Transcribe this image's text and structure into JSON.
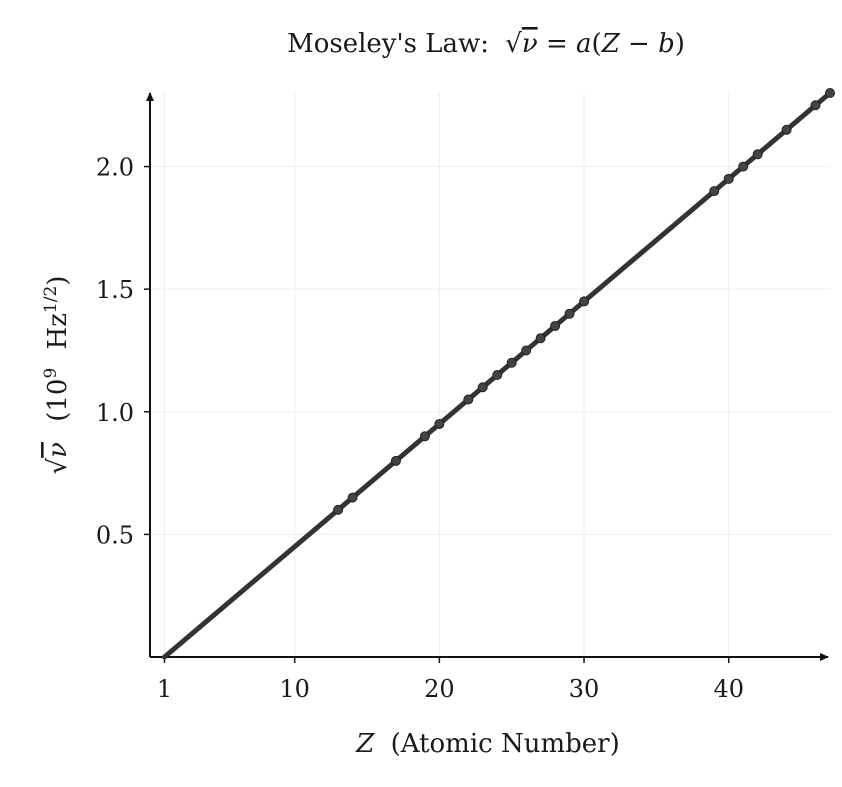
{
  "chart_data": {
    "type": "line",
    "title_prefix": "Moseley's Law:",
    "title_equation": {
      "sqrt": "√",
      "nu": "ν",
      "rhs_a": "a",
      "rhs_open": "(",
      "rhs_Z": "Z",
      "rhs_minus": " − ",
      "rhs_b": "b",
      "rhs_close": ")",
      "eq": " = "
    },
    "xlabel": {
      "symbol": "Z",
      "text": "(Atomic Number)"
    },
    "ylabel": {
      "sqrt": "√",
      "nu": "ν",
      "unit_open": "(10",
      "unit_exp": "9",
      "unit_hz": "Hz",
      "unit_hz_exp": "1/2",
      "unit_close": ")"
    },
    "xlim": [
      0,
      47
    ],
    "ylim": [
      0,
      2.3
    ],
    "x_ticks": [
      1,
      10,
      20,
      30,
      40
    ],
    "x_tick_labels": [
      "1",
      "10",
      "20",
      "30",
      "40"
    ],
    "y_ticks": [
      0.5,
      1.0,
      1.5,
      2.0
    ],
    "y_tick_labels": [
      "0.5",
      "1.0",
      "1.5",
      "2.0"
    ],
    "grid": true,
    "line": {
      "x": [
        1,
        47
      ],
      "y": [
        0,
        2.3
      ]
    },
    "points": {
      "x": [
        13,
        14,
        17,
        19,
        20,
        22,
        23,
        24,
        25,
        26,
        27,
        28,
        29,
        30,
        39,
        40,
        41,
        42,
        44,
        46,
        47
      ],
      "y": [
        0.6,
        0.65,
        0.8,
        0.9,
        0.95,
        1.05,
        1.1,
        1.15,
        1.2,
        1.25,
        1.3,
        1.35,
        1.4,
        1.45,
        1.9,
        1.95,
        2.0,
        2.05,
        2.15,
        2.25,
        2.3
      ]
    },
    "colors": {
      "line": "#333333",
      "points": "#444444",
      "axis": "#111111",
      "grid": "#eeeeee"
    }
  }
}
